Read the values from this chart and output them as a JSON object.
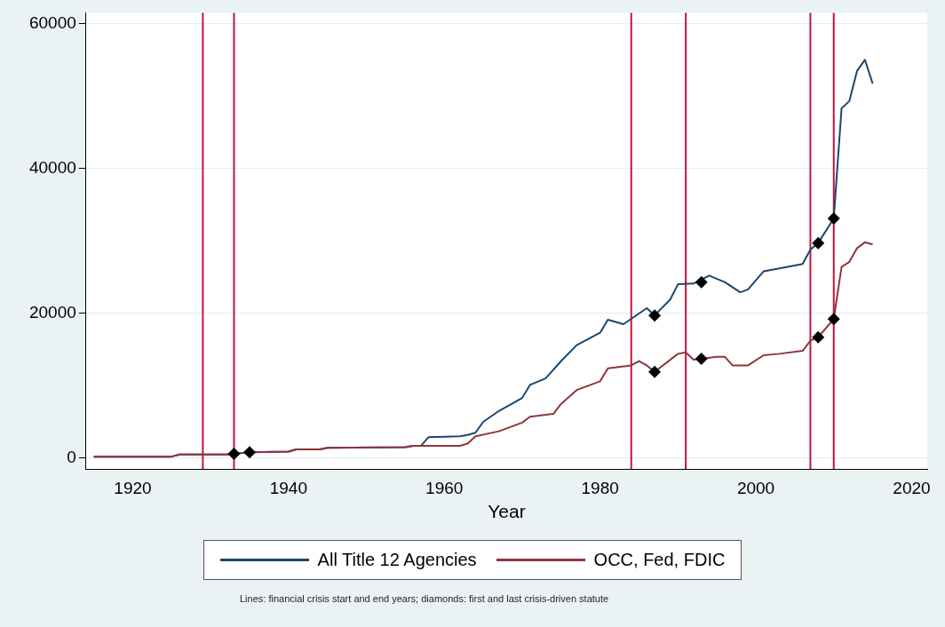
{
  "chart_data": {
    "type": "line",
    "xlabel": "Year",
    "xlim": [
      1914,
      2022
    ],
    "xticks": [
      1920,
      1940,
      1960,
      1980,
      2000,
      2020
    ],
    "ylim": [
      -1500,
      61500
    ],
    "yticks": [
      0,
      20000,
      40000,
      60000
    ],
    "grid": "y",
    "legend": "bottom",
    "line_style": "solid",
    "series": [
      {
        "name": "All Title 12 Agencies",
        "color": "#1a476f",
        "marker": "none",
        "x": [
          1915,
          1925,
          1926,
          1932,
          1933,
          1935,
          1940,
          1941,
          1944,
          1945,
          1955,
          1956,
          1957,
          1958,
          1962,
          1963,
          1964,
          1965,
          1967,
          1970,
          1971,
          1973,
          1975,
          1977,
          1980,
          1981,
          1983,
          1986,
          1987,
          1989,
          1990,
          1992,
          1994,
          1996,
          1998,
          1999,
          2001,
          2003,
          2006,
          2007,
          2008,
          2010,
          2011,
          2012,
          2013,
          2014,
          2015
        ],
        "values": [
          200,
          200,
          500,
          500,
          600,
          800,
          900,
          1200,
          1200,
          1400,
          1500,
          1700,
          1700,
          2900,
          3000,
          3200,
          3500,
          5000,
          6500,
          8300,
          10100,
          11000,
          13400,
          15600,
          17300,
          19100,
          18500,
          20700,
          19700,
          21900,
          24000,
          24100,
          25200,
          24300,
          22900,
          23300,
          25800,
          26200,
          26800,
          28800,
          29700,
          33100,
          48300,
          49300,
          53500,
          55000,
          51700
        ]
      },
      {
        "name": "OCC, Fed, FDIC",
        "color": "#90353b",
        "marker": "none",
        "x": [
          1915,
          1925,
          1926,
          1932,
          1933,
          1935,
          1940,
          1941,
          1944,
          1945,
          1955,
          1956,
          1962,
          1963,
          1964,
          1967,
          1970,
          1971,
          1974,
          1975,
          1977,
          1980,
          1981,
          1984,
          1985,
          1986,
          1987,
          1990,
          1991,
          1992,
          1995,
          1996,
          1997,
          1999,
          2001,
          2003,
          2006,
          2007,
          2008,
          2010,
          2011,
          2012,
          2013,
          2014,
          2015
        ],
        "values": [
          200,
          200,
          500,
          500,
          600,
          800,
          900,
          1200,
          1200,
          1400,
          1500,
          1700,
          1700,
          2000,
          3000,
          3700,
          4900,
          5700,
          6100,
          7500,
          9400,
          10600,
          12400,
          12800,
          13400,
          12800,
          11900,
          14400,
          14600,
          13600,
          14000,
          14000,
          12800,
          12800,
          14200,
          14400,
          14800,
          16200,
          16700,
          19200,
          26400,
          27100,
          29000,
          29800,
          29500
        ]
      },
      {
        "type": "scatter",
        "color": "#000000",
        "marker": "diamond",
        "x": [
          1933,
          1935,
          1987,
          1993,
          2008,
          2010,
          1987,
          1993,
          2008,
          2010
        ],
        "values": [
          600,
          800,
          19700,
          24300,
          29700,
          33100,
          11900,
          13700,
          16700,
          19200
        ]
      }
    ],
    "ref_lines": [
      {
        "axis": "x",
        "value": 1929,
        "color": "#c0143c"
      },
      {
        "axis": "x",
        "value": 1933,
        "color": "#c0143c"
      },
      {
        "axis": "x",
        "value": 1984,
        "color": "#c0143c"
      },
      {
        "axis": "x",
        "value": 1991,
        "color": "#c0143c"
      },
      {
        "axis": "x",
        "value": 2007,
        "color": "#c0143c"
      },
      {
        "axis": "x",
        "value": 2010,
        "color": "#c0143c"
      }
    ],
    "annotations": [
      "Lines: financial crisis start and end years; diamonds: first and last crisis-driven statute"
    ]
  }
}
